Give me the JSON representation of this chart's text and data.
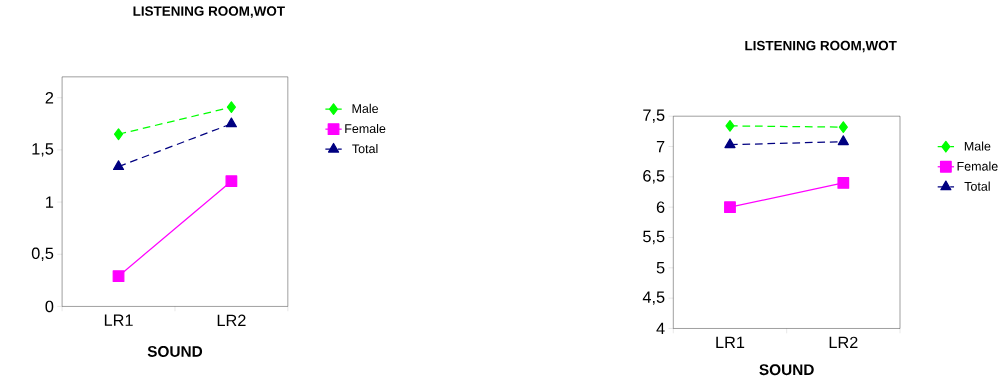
{
  "chart_data": [
    {
      "type": "line",
      "title": "LISTENING ROOM,WOT",
      "xlabel": "SOUND",
      "categories": [
        "LR1",
        "LR2"
      ],
      "legend": "right",
      "grid": false,
      "ylim": [
        0,
        2.2
      ],
      "yticks": [
        0,
        {
          "value": 0.5,
          "label": "0,5"
        },
        1,
        {
          "value": 1.5,
          "label": "1,5"
        },
        2
      ],
      "series": [
        {
          "name": "Male",
          "color": "#00ff00",
          "values": [
            1.65,
            1.91
          ],
          "marker": "diamond",
          "line_style": "dashed"
        },
        {
          "name": "Female",
          "color": "#ff00ff",
          "values": [
            0.29,
            1.2
          ],
          "marker": "square",
          "line_style": "solid"
        },
        {
          "name": "Total",
          "color": "#000080",
          "values": [
            1.34,
            1.75
          ],
          "marker": "triangle",
          "line_style": "dashed"
        }
      ]
    },
    {
      "type": "line",
      "title": "LISTENING ROOM,WOT",
      "xlabel": "SOUND",
      "categories": [
        "LR1",
        "LR2"
      ],
      "legend": "right",
      "grid": false,
      "ylim": [
        4,
        7.5
      ],
      "yticks": [
        4,
        {
          "value": 4.5,
          "label": "4,5"
        },
        5,
        {
          "value": 5.5,
          "label": "5,5"
        },
        6,
        {
          "value": 6.5,
          "label": "6,5"
        },
        7,
        {
          "value": 7.5,
          "label": "7,5"
        }
      ],
      "series": [
        {
          "name": "Male",
          "color": "#00ff00",
          "values": [
            7.34,
            7.32
          ],
          "marker": "diamond",
          "line_style": "dashed"
        },
        {
          "name": "Female",
          "color": "#ff00ff",
          "values": [
            6.0,
            6.4
          ],
          "marker": "square",
          "line_style": "solid"
        },
        {
          "name": "Total",
          "color": "#000080",
          "values": [
            7.03,
            7.08
          ],
          "marker": "triangle",
          "line_style": "dashed"
        }
      ]
    }
  ]
}
